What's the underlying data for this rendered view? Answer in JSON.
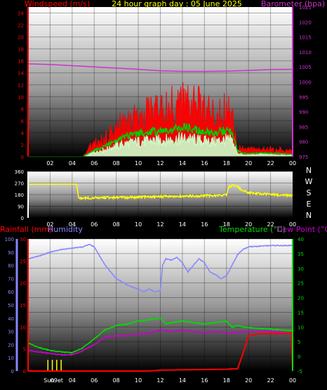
{
  "header": {
    "wind_title": "Windspeed (m/s)",
    "center_title": "24 hour graph day : 05 June 2025",
    "baro_title": "Barometer (hpa)"
  },
  "colors": {
    "wind_max": "#ff0000",
    "wind_avg": "#00cc00",
    "wind_gust": "#ccffcc",
    "barometer": "#cc33cc",
    "direction": "#ffff00",
    "humidity": "#8888ff",
    "temperature": "#00dd00",
    "dew_point": "#cc00cc",
    "rain": "#ff0000",
    "sun": "#ffff00",
    "axis_white": "#ffffff"
  },
  "bottom": {
    "rain_title": "Rainfall (mm)",
    "hum_title": "Humidity",
    "temp_title": "Temperature (°C)",
    "dew_title": "Dew Point (°C)",
    "sun_label": "Sun",
    "set_label": "09et"
  },
  "compass": [
    "N",
    "W",
    "S",
    "E",
    "N"
  ],
  "chart_data": [
    {
      "type": "line",
      "x": [
        "00",
        "02",
        "04",
        "06",
        "08",
        "10",
        "12",
        "14",
        "16",
        "18",
        "20",
        "22",
        "00"
      ],
      "series": [
        {
          "name": "Windspeed (m/s)",
          "axis": "left",
          "x": [
            0,
            2,
            4,
            5,
            5.5,
            6,
            7,
            8,
            9,
            10,
            11,
            12,
            13,
            14,
            15,
            16,
            17,
            18,
            18.5,
            19,
            19.5,
            20,
            21,
            22,
            23,
            24
          ],
          "values": [
            0,
            0,
            0,
            0,
            1.5,
            2,
            3,
            4.5,
            6,
            6.5,
            7,
            8,
            8,
            9,
            8.5,
            7.5,
            6.5,
            7.5,
            6.5,
            1.5,
            1.2,
            1.2,
            1.3,
            1.2,
            1.2,
            0.9
          ]
        },
        {
          "name": "Wind avg",
          "x": [
            0,
            2,
            4,
            5,
            5.5,
            6,
            7,
            8,
            9,
            10,
            11,
            12,
            13,
            14,
            15,
            16,
            17,
            18,
            18.5,
            19,
            19.5,
            20,
            21,
            22,
            23,
            24
          ],
          "values": [
            0,
            0,
            0,
            0,
            0.6,
            1,
            1.8,
            2.8,
            3.5,
            3.8,
            4.2,
            4.3,
            4.4,
            5,
            4.5,
            4.2,
            4,
            4.5,
            4.2,
            1,
            0.6,
            0.5,
            0.6,
            0.6,
            0.5,
            0.4
          ]
        },
        {
          "name": "Wind gust",
          "x": [
            0,
            2,
            4,
            5,
            5.5,
            6,
            7,
            8,
            9,
            10,
            11,
            12,
            13,
            14,
            15,
            16,
            17,
            18,
            18.5,
            19,
            19.5,
            20,
            21,
            22,
            23,
            24
          ],
          "values": [
            0,
            0,
            0,
            0,
            0.4,
            0.8,
            1.2,
            1.8,
            2.2,
            2.5,
            2.6,
            2.7,
            2.8,
            3,
            2.8,
            2.6,
            2.5,
            2.8,
            2.6,
            0.6,
            0.3,
            0.3,
            0.4,
            0.4,
            0.3,
            0.2
          ]
        },
        {
          "name": "Barometer (hpa)",
          "axis": "right",
          "x": [
            0,
            2,
            4,
            6,
            8,
            10,
            12,
            14,
            16,
            18,
            20,
            22,
            24
          ],
          "values": [
            1006,
            1005.8,
            1005.4,
            1005,
            1004.6,
            1004.2,
            1003.7,
            1003.5,
            1003.5,
            1003.6,
            1003.8,
            1004.1,
            1004.2
          ]
        }
      ],
      "left_ticks": [
        "0",
        "2",
        "4",
        "6",
        "8",
        "10",
        "12",
        "14",
        "16",
        "18",
        "20",
        "22",
        "24"
      ],
      "right_ticks": [
        "975",
        "980",
        "985",
        "990",
        "995",
        "1000",
        "1005",
        "1010",
        "1015",
        "1020",
        "1025"
      ],
      "ylim_left": [
        0,
        25
      ],
      "ylim_right": [
        975,
        1025
      ],
      "grid": true
    },
    {
      "type": "line",
      "x": [
        "00",
        "02",
        "04",
        "06",
        "08",
        "10",
        "12",
        "14",
        "16",
        "18",
        "20",
        "22",
        "00"
      ],
      "series": [
        {
          "name": "Wind direction",
          "x": [
            0,
            2,
            4,
            4.4,
            4.6,
            6,
            8,
            10,
            12,
            14,
            16,
            18,
            18.2,
            18.6,
            19,
            19.5,
            20,
            21,
            22,
            23,
            24
          ],
          "values": [
            262,
            262,
            262,
            262,
            150,
            155,
            158,
            160,
            165,
            168,
            172,
            175,
            238,
            260,
            240,
            210,
            195,
            188,
            182,
            175,
            176
          ]
        }
      ],
      "left_ticks": [
        "0",
        "90",
        "180",
        "270",
        "360"
      ],
      "ylim": [
        0,
        360
      ],
      "grid": true
    },
    {
      "type": "line",
      "x": [
        "Sun",
        "09et",
        "04",
        "06",
        "08",
        "10",
        "12",
        "14",
        "16",
        "18",
        "20",
        "22",
        "00"
      ],
      "series": [
        {
          "name": "Humidity",
          "axis": "humidity",
          "x": [
            0,
            1,
            2,
            3,
            4,
            5,
            5.5,
            6,
            7,
            8,
            9,
            10,
            10.5,
            11,
            11.5,
            12,
            12.2,
            12.5,
            13,
            13.5,
            14,
            14.5,
            15,
            15.5,
            16,
            16.5,
            17,
            17.5,
            18,
            18.5,
            19,
            19.5,
            20,
            22,
            24
          ],
          "values": [
            85,
            87,
            90,
            92,
            93,
            94,
            96,
            94,
            80,
            70,
            65,
            62,
            60,
            62,
            60,
            61,
            80,
            85,
            84,
            86,
            82,
            75,
            80,
            85,
            82,
            75,
            73,
            70,
            72,
            80,
            88,
            92,
            94,
            95,
            95
          ]
        },
        {
          "name": "Temperature (°C)",
          "axis": "right",
          "x": [
            0,
            1,
            2,
            3,
            4,
            5,
            6,
            7,
            8,
            9,
            10,
            11,
            12,
            12.5,
            13,
            14,
            15,
            16,
            17,
            18,
            18.5,
            19,
            19.5,
            20,
            21,
            22,
            23,
            24
          ],
          "values": [
            4.5,
            3,
            2,
            1.5,
            1.2,
            3,
            6,
            9,
            10.5,
            11,
            12,
            12.5,
            13,
            11,
            11.5,
            12,
            11.5,
            11,
            11.5,
            12,
            10,
            10.5,
            10,
            9.8,
            9.5,
            9.3,
            9,
            8.7
          ]
        },
        {
          "name": "Dew Point (°C)",
          "axis": "right",
          "x": [
            0,
            1,
            2,
            3,
            4,
            5,
            6,
            7,
            8,
            9,
            10,
            11,
            12,
            13,
            14,
            15,
            16,
            17,
            18,
            19,
            20,
            21,
            22,
            23,
            24
          ],
          "values": [
            2,
            1.5,
            1,
            0.5,
            0.5,
            2,
            4,
            6.5,
            7,
            7,
            7.5,
            8,
            9,
            8.5,
            8.8,
            8.5,
            8,
            8.5,
            8,
            8.2,
            8.5,
            8.5,
            8.5,
            8.2,
            7.5
          ]
        },
        {
          "name": "Rainfall (mm)",
          "axis": "rain",
          "x": [
            0,
            4,
            8,
            11,
            12,
            18,
            18.5,
            19,
            19.5,
            20,
            21,
            22,
            23,
            23.9,
            24
          ],
          "values": [
            0,
            0,
            0,
            0,
            0.2,
            0.4,
            0.5,
            0.5,
            4,
            8,
            8.5,
            8.5,
            8.5,
            8.6,
            0
          ]
        }
      ],
      "humidity_ticks": [
        "0",
        "10",
        "20",
        "30",
        "40",
        "50",
        "60",
        "70",
        "80",
        "90",
        "100"
      ],
      "rain_ticks": [
        "0",
        "5",
        "10",
        "15",
        "20",
        "25",
        "30"
      ],
      "temp_ticks": [
        "-5",
        "0",
        "5",
        "10",
        "15",
        "20",
        "25",
        "30",
        "35",
        "40"
      ],
      "ylim_humidity": [
        0,
        100
      ],
      "ylim_rain": [
        0,
        30
      ],
      "ylim_temp": [
        -5,
        40
      ],
      "grid": true
    }
  ]
}
